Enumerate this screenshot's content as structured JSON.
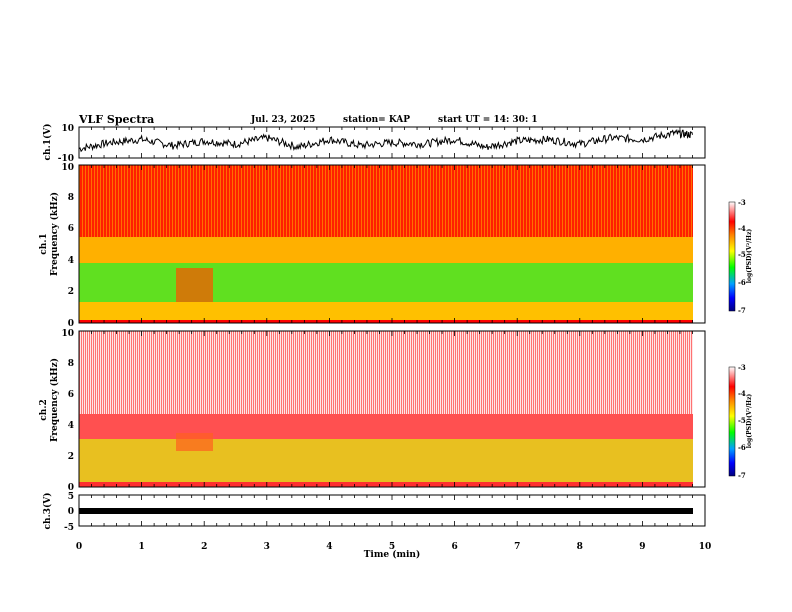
{
  "header": {
    "title": "VLF Spectra",
    "date": "Jul. 23, 2025",
    "station": "station= KAP",
    "start": "start UT =  14: 30: 1"
  },
  "colors": {
    "spectrum_low": "#000080",
    "spectrum_mid": "#00ff00",
    "spectrum_yellow": "#ffff00",
    "spectrum_high": "#ff0000",
    "spectrum_top": "#ffffff"
  },
  "chart_data": [
    {
      "type": "line",
      "name": "ch1-waveform",
      "ylabel": "ch.1(V)",
      "ylim": [
        -10,
        10
      ],
      "yticks": [
        "10",
        "-10"
      ],
      "xlim": [
        0,
        10
      ],
      "description_points": {
        "x": [
          0,
          0.5,
          1,
          1.5,
          2,
          2.5,
          3,
          3.5,
          4,
          4.5,
          5,
          5.5,
          6,
          6.5,
          7,
          7.5,
          8,
          8.5,
          9,
          9.5,
          9.8
        ],
        "y": [
          -4,
          0,
          2,
          -2,
          1,
          -1,
          3,
          -3,
          2,
          -2,
          0,
          -1,
          2,
          -3,
          1,
          2,
          -1,
          3,
          2,
          6,
          5
        ]
      }
    },
    {
      "type": "heatmap",
      "name": "ch1-spectrogram",
      "ylabel": "ch.1",
      "ylabel2": "Frequency (kHz)",
      "ylim": [
        0,
        10
      ],
      "yticks": [
        "0",
        "2",
        "4",
        "6",
        "8",
        "10"
      ],
      "xlim": [
        0,
        9.8
      ],
      "bands_khz": [
        {
          "from": 0,
          "to": 1.0,
          "level": "yellow-red"
        },
        {
          "from": 1.0,
          "to": 3.5,
          "level": "green"
        },
        {
          "from": 3.5,
          "to": 5.0,
          "level": "yellow"
        },
        {
          "from": 5.0,
          "to": 10,
          "level": "red"
        }
      ],
      "colorbar": {
        "range": [
          -7,
          -3
        ],
        "ticks": [
          "-3",
          "-4",
          "-5",
          "-6",
          "-7"
        ],
        "title": "log(PSD)(V²/Hz)"
      }
    },
    {
      "type": "heatmap",
      "name": "ch2-spectrogram",
      "ylabel": "ch.2",
      "ylabel2": "Frequency (kHz)",
      "ylim": [
        0,
        10
      ],
      "yticks": [
        "0",
        "2",
        "4",
        "6",
        "8",
        "10"
      ],
      "xlim": [
        0,
        9.8
      ],
      "bands_khz": [
        {
          "from": 0,
          "to": 3.0,
          "level": "yellow"
        },
        {
          "from": 3.0,
          "to": 4.5,
          "level": "red"
        },
        {
          "from": 4.5,
          "to": 10,
          "level": "pink-white"
        }
      ],
      "colorbar": {
        "range": [
          -7,
          -3
        ],
        "ticks": [
          "-3",
          "-4",
          "-5",
          "-6",
          "-7"
        ],
        "title": "log(PSD)(V²/Hz)"
      }
    },
    {
      "type": "line",
      "name": "ch3-waveform",
      "ylabel": "ch.3(V)",
      "ylim": [
        -5,
        5
      ],
      "yticks": [
        "5",
        "0",
        "-5"
      ],
      "xlim": [
        0,
        9.8
      ],
      "description_points": {
        "x": [
          0,
          9.8
        ],
        "y": [
          -0.5,
          -0.5
        ]
      }
    }
  ],
  "xaxis": {
    "label": "Time (min)",
    "ticks": [
      "0",
      "1",
      "2",
      "3",
      "4",
      "5",
      "6",
      "7",
      "8",
      "9",
      "10"
    ],
    "range": [
      0,
      10
    ]
  }
}
